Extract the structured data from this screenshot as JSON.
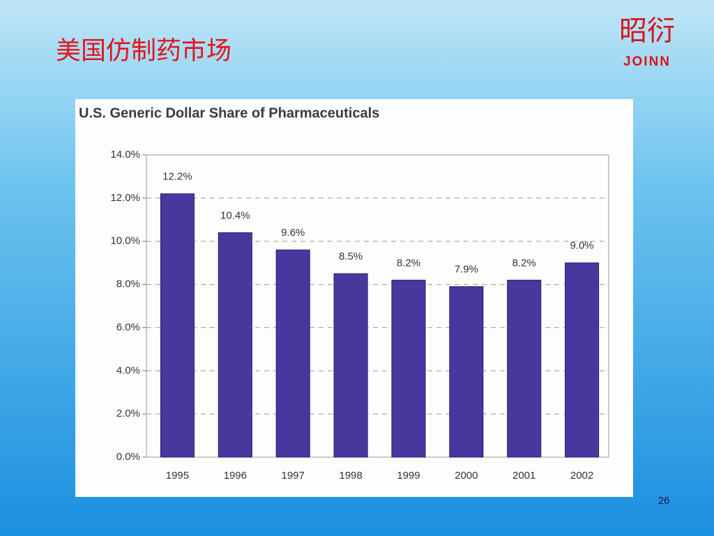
{
  "slide": {
    "title": "美国仿制药市场",
    "logo_text": "昭衍",
    "logo_brand": "JOINN",
    "page_number": "26"
  },
  "chart_data": {
    "type": "bar",
    "title": "U.S. Generic Dollar Share of Pharmaceuticals",
    "categories": [
      "1995",
      "1996",
      "1997",
      "1998",
      "1999",
      "2000",
      "2001",
      "2002"
    ],
    "values": [
      12.2,
      10.4,
      9.6,
      8.5,
      8.2,
      7.9,
      8.2,
      9.0
    ],
    "value_labels": [
      "12.2%",
      "10.4%",
      "9.6%",
      "8.5%",
      "8.2%",
      "7.9%",
      "8.2%",
      "9.0%"
    ],
    "color": "#47389e",
    "ylim": [
      0,
      14
    ],
    "yticks": [
      {
        "value": 0,
        "label": "0.0%"
      },
      {
        "value": 2,
        "label": "2.0%"
      },
      {
        "value": 4,
        "label": "4.0%"
      },
      {
        "value": 6,
        "label": "6.0%"
      },
      {
        "value": 8,
        "label": "8.0%"
      },
      {
        "value": 10,
        "label": "10.0%"
      },
      {
        "value": 12,
        "label": "12.0%"
      },
      {
        "value": 14,
        "label": "14.0%"
      }
    ],
    "grid": true
  }
}
